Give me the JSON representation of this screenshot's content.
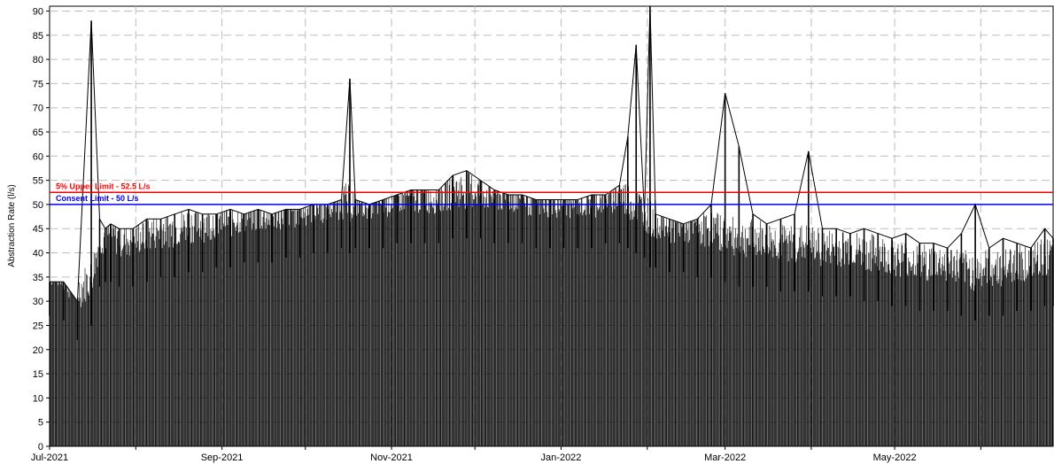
{
  "chart_data": {
    "type": "line",
    "title": "",
    "xlabel": "",
    "ylabel": "Abstraction Rate (l/s)",
    "ylim": [
      0,
      91
    ],
    "yticks": [
      0,
      5,
      10,
      15,
      20,
      25,
      30,
      35,
      40,
      45,
      50,
      55,
      60,
      65,
      70,
      75,
      80,
      85,
      90
    ],
    "xlim": [
      "2021-07-01",
      "2022-06-27"
    ],
    "xticks": [
      {
        "date": "2021-07-01",
        "label": "Jul-2021"
      },
      {
        "date": "2021-09-01",
        "label": "Sep-2021"
      },
      {
        "date": "2021-11-01",
        "label": "Nov-2021"
      },
      {
        "date": "2022-01-01",
        "label": "Jan-2022"
      },
      {
        "date": "2022-03-01",
        "label": "Mar-2022"
      },
      {
        "date": "2022-05-01",
        "label": "May-2022"
      }
    ],
    "grid": true,
    "series": [
      {
        "color": "#000000",
        "x": [
          "2021-07-01",
          "2021-07-06",
          "2021-07-11",
          "2021-07-16",
          "2021-07-19",
          "2021-07-21",
          "2021-07-23",
          "2021-07-26",
          "2021-07-31",
          "2021-08-05",
          "2021-08-10",
          "2021-08-15",
          "2021-08-20",
          "2021-08-25",
          "2021-08-30",
          "2021-09-04",
          "2021-09-09",
          "2021-09-14",
          "2021-09-19",
          "2021-09-24",
          "2021-09-29",
          "2021-10-04",
          "2021-10-09",
          "2021-10-14",
          "2021-10-17",
          "2021-10-19",
          "2021-10-24",
          "2021-10-29",
          "2021-11-03",
          "2021-11-08",
          "2021-11-13",
          "2021-11-18",
          "2021-11-23",
          "2021-11-28",
          "2021-12-03",
          "2021-12-08",
          "2021-12-13",
          "2021-12-18",
          "2021-12-23",
          "2021-12-28",
          "2022-01-02",
          "2022-01-07",
          "2022-01-12",
          "2022-01-17",
          "2022-01-22",
          "2022-01-25",
          "2022-01-28",
          "2022-01-31",
          "2022-02-02",
          "2022-02-04",
          "2022-02-09",
          "2022-02-14",
          "2022-02-19",
          "2022-02-24",
          "2022-03-01",
          "2022-03-06",
          "2022-03-11",
          "2022-03-16",
          "2022-03-21",
          "2022-03-26",
          "2022-03-31",
          "2022-04-05",
          "2022-04-10",
          "2022-04-15",
          "2022-04-20",
          "2022-04-25",
          "2022-04-30",
          "2022-05-05",
          "2022-05-10",
          "2022-05-15",
          "2022-05-20",
          "2022-05-25",
          "2022-05-30",
          "2022-06-04",
          "2022-06-09",
          "2022-06-14",
          "2022-06-19",
          "2022-06-24",
          "2022-06-27"
        ],
        "max": [
          34,
          34,
          30,
          88,
          47,
          45,
          46,
          45,
          45,
          47,
          47,
          48,
          49,
          48,
          48,
          49,
          48,
          49,
          48,
          49,
          49,
          50,
          50,
          51,
          76,
          51,
          50,
          51,
          52,
          53,
          53,
          53,
          56,
          57,
          55,
          53,
          52,
          52,
          51,
          51,
          51,
          51,
          52,
          52,
          54,
          64,
          83,
          48,
          91,
          48,
          47,
          46,
          47,
          50,
          73,
          62,
          48,
          46,
          47,
          48,
          61,
          45,
          45,
          44,
          45,
          44,
          43,
          44,
          42,
          42,
          41,
          44,
          50,
          41,
          43,
          42,
          41,
          45,
          43
        ],
        "min": [
          0,
          0,
          0,
          0,
          0,
          0,
          0,
          0,
          0,
          0,
          0,
          0,
          0,
          0,
          0,
          0,
          0,
          0,
          0,
          0,
          0,
          0,
          0,
          0,
          0,
          0,
          0,
          0,
          0,
          0,
          0,
          0,
          0,
          0,
          0,
          0,
          0,
          0,
          0,
          0,
          0,
          0,
          0,
          0,
          0,
          0,
          0,
          0,
          0,
          0,
          0,
          0,
          0,
          0,
          0,
          0,
          0,
          0,
          0,
          0,
          0,
          0,
          0,
          0,
          0,
          0,
          0,
          0,
          0,
          0,
          0,
          0,
          0,
          0,
          0,
          0,
          0,
          0,
          0
        ],
        "typical": [
          27,
          26,
          22,
          25,
          33,
          34,
          34,
          33,
          33,
          34,
          35,
          35,
          36,
          36,
          37,
          37,
          38,
          38,
          38,
          39,
          39,
          40,
          40,
          41,
          40,
          41,
          41,
          41,
          42,
          42,
          42,
          42,
          43,
          43,
          43,
          42,
          42,
          42,
          41,
          41,
          41,
          41,
          41,
          42,
          42,
          41,
          40,
          39,
          37,
          37,
          36,
          36,
          35,
          35,
          34,
          33,
          33,
          33,
          32,
          32,
          32,
          31,
          31,
          31,
          30,
          30,
          29,
          29,
          28,
          28,
          28,
          27,
          26,
          27,
          27,
          28,
          28,
          29,
          29
        ]
      }
    ],
    "reference_lines": [
      {
        "label": "5% Upper Limit - 52.5 L/s",
        "value": 52.5,
        "color": "#ff0000"
      },
      {
        "label": "Consent Limit - 50 L/s",
        "value": 50,
        "color": "#0000ff"
      }
    ]
  }
}
